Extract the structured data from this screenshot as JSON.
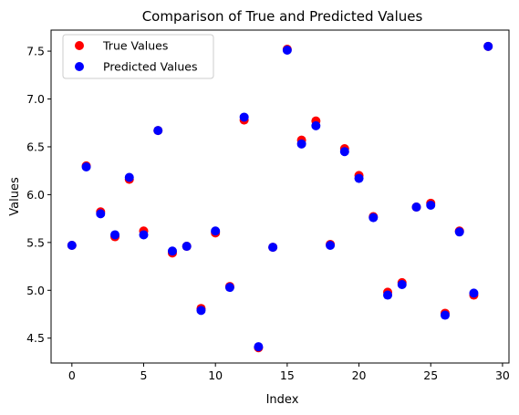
{
  "chart_data": {
    "type": "scatter",
    "title": "Comparison of True and Predicted Values",
    "xlabel": "Index",
    "ylabel": "Values",
    "xlim": [
      -1.45,
      30.45
    ],
    "ylim": [
      4.24,
      7.72
    ],
    "xticks": [
      0,
      5,
      10,
      15,
      20,
      25,
      30
    ],
    "yticks": [
      4.5,
      5.0,
      5.5,
      6.0,
      6.5,
      7.0,
      7.5
    ],
    "ytick_labels": [
      "4.5",
      "5.0",
      "5.5",
      "6.0",
      "6.5",
      "7.0",
      "7.5"
    ],
    "grid": false,
    "legend_position": "upper-left",
    "x": [
      0,
      1,
      2,
      3,
      4,
      5,
      6,
      7,
      8,
      9,
      10,
      11,
      12,
      13,
      14,
      15,
      16,
      17,
      18,
      19,
      20,
      21,
      22,
      23,
      24,
      25,
      26,
      27,
      28,
      29
    ],
    "series": [
      {
        "name": "True Values",
        "color": "#ff0000",
        "values": [
          5.47,
          6.3,
          5.82,
          5.56,
          6.16,
          5.62,
          6.67,
          5.39,
          5.46,
          4.81,
          5.6,
          5.04,
          6.78,
          4.4,
          5.45,
          7.52,
          6.57,
          6.77,
          5.48,
          6.48,
          6.2,
          5.77,
          4.98,
          5.08,
          5.87,
          5.91,
          4.76,
          5.62,
          4.95,
          7.55
        ]
      },
      {
        "name": "Predicted Values",
        "color": "#0000ff",
        "values": [
          5.47,
          6.29,
          5.8,
          5.58,
          6.18,
          5.58,
          6.67,
          5.41,
          5.46,
          4.79,
          5.62,
          5.03,
          6.81,
          4.41,
          5.45,
          7.51,
          6.53,
          6.72,
          5.47,
          6.45,
          6.17,
          5.76,
          4.95,
          5.06,
          5.87,
          5.89,
          4.74,
          5.61,
          4.97,
          7.55
        ]
      }
    ]
  }
}
